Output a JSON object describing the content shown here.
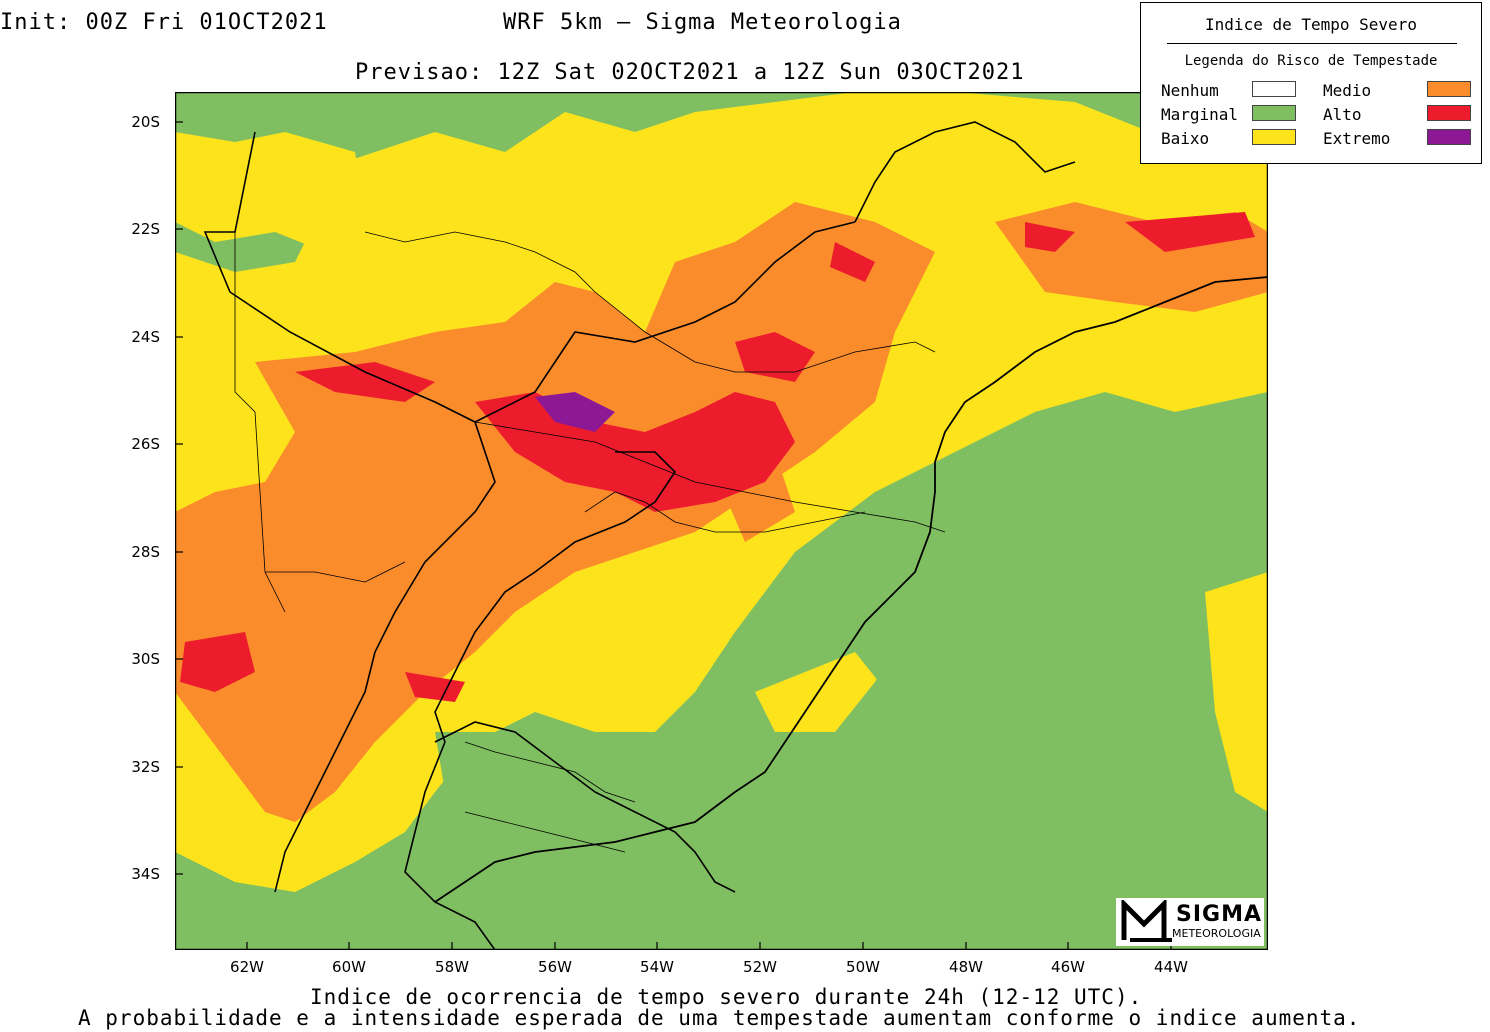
{
  "header": {
    "init": "Init: 00Z Fri 01OCT2021",
    "title": "WRF 5km — Sigma Meteorologia",
    "subtitle": "Previsao: 12Z Sat 02OCT2021 a 12Z Sun 03OCT2021"
  },
  "legend": {
    "title": "Indice de Tempo Severo",
    "subtitle": "Legenda do Risco de Tempestade",
    "items": [
      {
        "label": "Nenhum",
        "color": "#ffffff"
      },
      {
        "label": "Marginal",
        "color": "#7fbf62"
      },
      {
        "label": "Baixo",
        "color": "#fde31c"
      },
      {
        "label": "Medio",
        "color": "#fb8c2c"
      },
      {
        "label": "Alto",
        "color": "#ed1c2d"
      },
      {
        "label": "Extremo",
        "color": "#8c1896"
      }
    ]
  },
  "axes": {
    "lat_labels": [
      "20S",
      "22S",
      "24S",
      "26S",
      "28S",
      "30S",
      "32S",
      "34S"
    ],
    "lon_labels": [
      "62W",
      "60W",
      "58W",
      "56W",
      "54W",
      "52W",
      "50W",
      "48W",
      "46W",
      "44W"
    ]
  },
  "footer": {
    "line1": "Indice de ocorrencia de tempo severo durante 24h (12-12 UTC).",
    "line2": "A probabilidade e a intensidade esperada de uma tempestade aumentam conforme o indice aumenta."
  },
  "logo": {
    "word": "SIGMA",
    "sub": "METEOROLOGIA"
  }
}
